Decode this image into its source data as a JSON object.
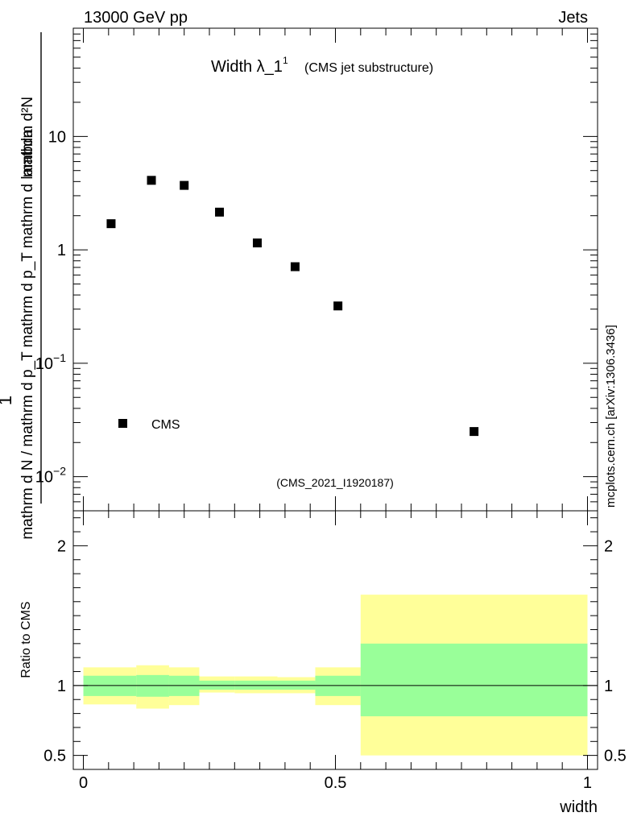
{
  "header": {
    "left": "13000 GeV pp",
    "right": "Jets",
    "side_note": "mcplots.cern.ch [arXiv:1306.3436]"
  },
  "chart_data": [
    {
      "type": "scatter",
      "title": "Width λ_1",
      "title_sup": "1",
      "subtitle": "(CMS jet substructure)",
      "ylabel_num": "mathrm d²N",
      "ylabel_den": "mathrm d N / mathrm d p_T mathrm d p_T mathrm d lambda",
      "ylabel_one": "1",
      "yscale": "log",
      "ylim": [
        0.005,
        90
      ],
      "xlim": [
        -0.02,
        1.02
      ],
      "y_ticks": [
        {
          "value": 10,
          "label": "10"
        },
        {
          "value": 1,
          "label": "1"
        },
        {
          "value": 0.1,
          "label": "10",
          "exp": "−1"
        },
        {
          "value": 0.01,
          "label": "10",
          "exp": "−2"
        }
      ],
      "legend": {
        "label": "CMS",
        "position": "bottom-left"
      },
      "watermark": "(CMS_2021_I1920187)",
      "series": [
        {
          "name": "CMS",
          "x": [
            0.055,
            0.135,
            0.2,
            0.27,
            0.345,
            0.42,
            0.505,
            0.775
          ],
          "y": [
            1.7,
            4.1,
            3.7,
            2.15,
            1.15,
            0.71,
            0.32,
            0.025
          ]
        }
      ]
    },
    {
      "type": "area",
      "ylabel": "Ratio to CMS",
      "xlabel": "width",
      "xlim": [
        -0.02,
        1.02
      ],
      "ylim": [
        0.4,
        2.25
      ],
      "x_ticks": [
        {
          "value": 0,
          "label": "0"
        },
        {
          "value": 0.5,
          "label": "0.5"
        },
        {
          "value": 1,
          "label": "1"
        }
      ],
      "y_ticks": [
        {
          "value": 2,
          "label": "2"
        },
        {
          "value": 1,
          "label": "1"
        },
        {
          "value": 0.5,
          "label": "0.5"
        }
      ],
      "reference_line": 1,
      "bins": [
        {
          "x0": 0.0,
          "x1": 0.105,
          "stat": [
            0.925,
            1.07
          ],
          "total": [
            0.865,
            1.13
          ]
        },
        {
          "x0": 0.105,
          "x1": 0.17,
          "stat": [
            0.92,
            1.075
          ],
          "total": [
            0.835,
            1.145
          ]
        },
        {
          "x0": 0.17,
          "x1": 0.23,
          "stat": [
            0.925,
            1.07
          ],
          "total": [
            0.86,
            1.13
          ]
        },
        {
          "x0": 0.23,
          "x1": 0.3,
          "stat": [
            0.97,
            1.035
          ],
          "total": [
            0.95,
            1.065
          ]
        },
        {
          "x0": 0.3,
          "x1": 0.385,
          "stat": [
            0.97,
            1.035
          ],
          "total": [
            0.945,
            1.065
          ]
        },
        {
          "x0": 0.385,
          "x1": 0.46,
          "stat": [
            0.97,
            1.035
          ],
          "total": [
            0.945,
            1.06
          ]
        },
        {
          "x0": 0.46,
          "x1": 0.55,
          "stat": [
            0.925,
            1.07
          ],
          "total": [
            0.86,
            1.13
          ]
        },
        {
          "x0": 0.55,
          "x1": 1.0,
          "stat": [
            0.78,
            1.3
          ],
          "total": [
            0.5,
            1.65
          ]
        }
      ],
      "colors": {
        "stat": "#99ff99",
        "total": "#ffff99"
      }
    }
  ]
}
